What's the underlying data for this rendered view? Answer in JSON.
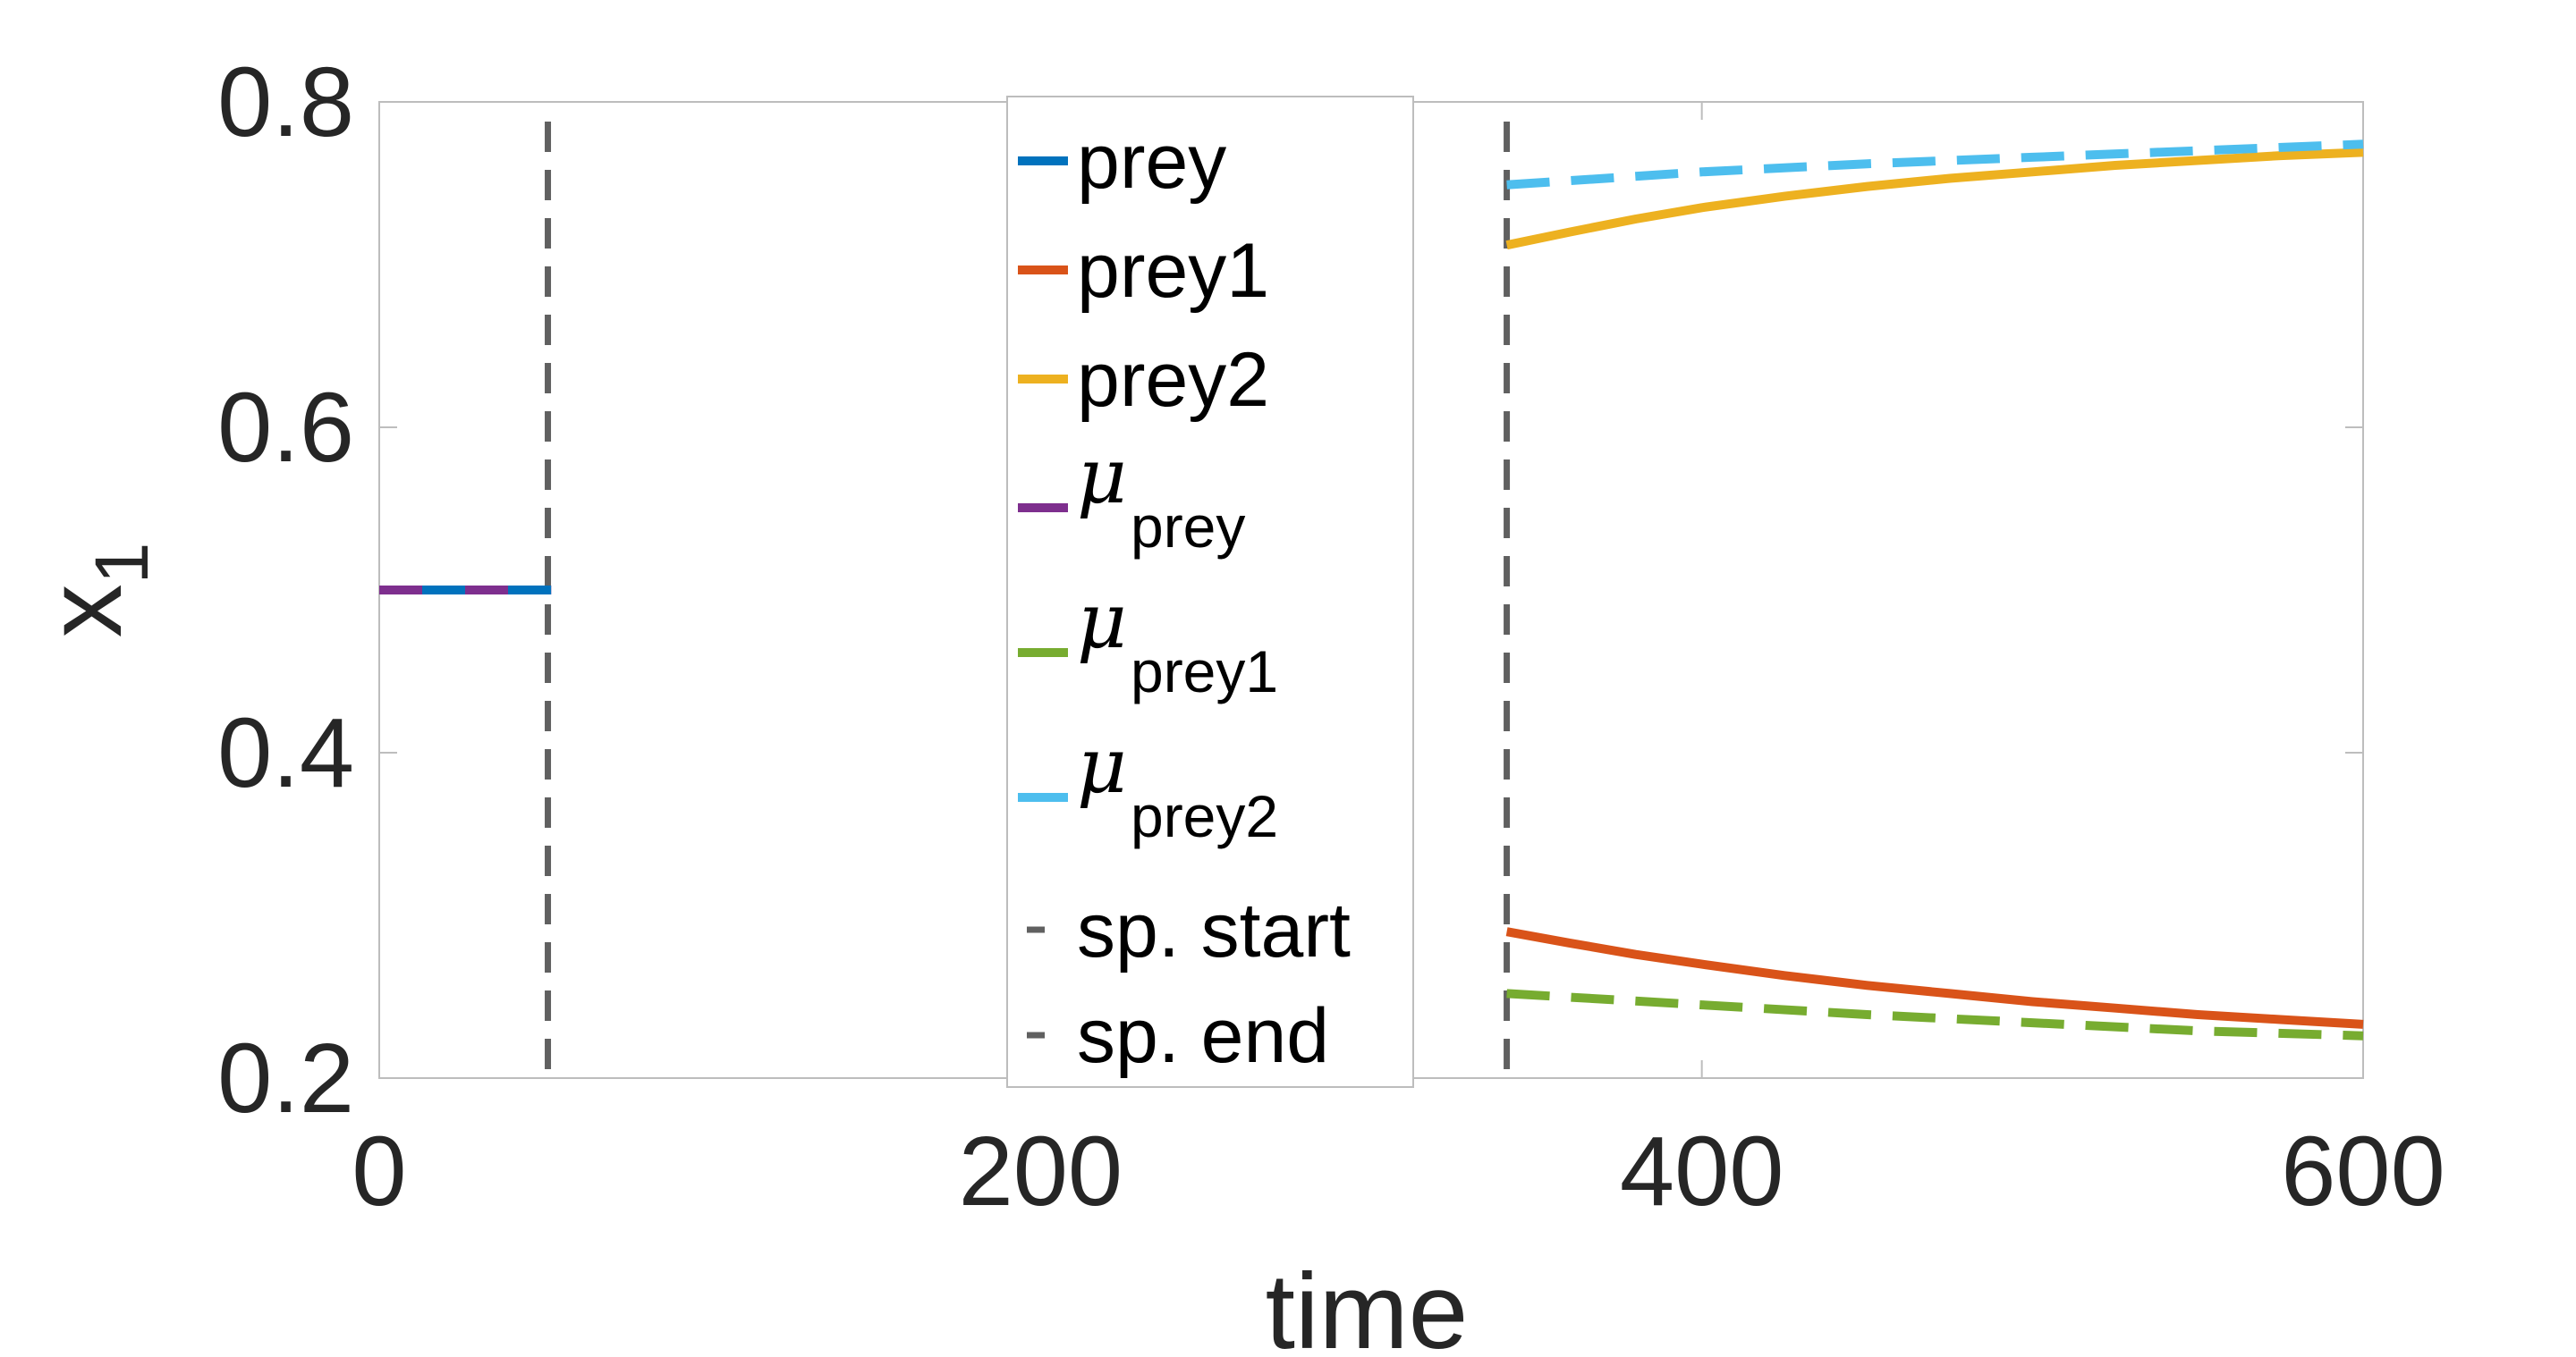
{
  "chart_data": {
    "type": "line",
    "xlabel": "time",
    "ylabel": "x",
    "ylabel_subscript": "1",
    "xlim": [
      0,
      600
    ],
    "ylim": [
      0.2,
      0.8
    ],
    "xticks": [
      0,
      200,
      400,
      600
    ],
    "xtick_labels": [
      "0",
      "200",
      "400",
      "600"
    ],
    "yticks": [
      0.2,
      0.4,
      0.6,
      0.8
    ],
    "ytick_labels": [
      "0.2",
      "0.4",
      "0.6",
      "0.8"
    ],
    "grid": false,
    "legend_position": "top-center",
    "series": [
      {
        "name": "prey",
        "color": "#0072BD",
        "style": "solid",
        "x": [
          0,
          52
        ],
        "y": [
          0.5,
          0.5
        ]
      },
      {
        "name": "prey1",
        "color": "#D95319",
        "style": "solid",
        "x": [
          341,
          360,
          380,
          400,
          425,
          450,
          475,
          500,
          525,
          550,
          575,
          600
        ],
        "y": [
          0.29,
          0.283,
          0.276,
          0.27,
          0.263,
          0.257,
          0.252,
          0.247,
          0.243,
          0.239,
          0.236,
          0.233
        ]
      },
      {
        "name": "prey2",
        "color": "#EDB120",
        "style": "solid",
        "x": [
          341,
          360,
          380,
          400,
          425,
          450,
          475,
          500,
          525,
          550,
          575,
          600
        ],
        "y": [
          0.712,
          0.72,
          0.728,
          0.735,
          0.742,
          0.748,
          0.753,
          0.757,
          0.761,
          0.764,
          0.767,
          0.769
        ]
      },
      {
        "name": "prey",
        "name_prefix": "μ",
        "name_is_subscript": true,
        "color": "#7E2F8E",
        "style": "dashed",
        "x": [
          0,
          52
        ],
        "y": [
          0.5,
          0.5
        ]
      },
      {
        "name": "prey1",
        "name_prefix": "μ",
        "name_is_subscript": true,
        "color": "#77AC30",
        "style": "dashed",
        "x": [
          341,
          400,
          450,
          500,
          550,
          600
        ],
        "y": [
          0.252,
          0.245,
          0.239,
          0.234,
          0.229,
          0.226
        ]
      },
      {
        "name": "prey2",
        "name_prefix": "μ",
        "name_is_subscript": true,
        "color": "#4DBEEE",
        "style": "dashed",
        "x": [
          341,
          400,
          450,
          500,
          550,
          600
        ],
        "y": [
          0.749,
          0.757,
          0.762,
          0.766,
          0.77,
          0.774
        ]
      }
    ],
    "vlines": [
      {
        "name": "sp. start",
        "x": 51,
        "color": "#606060",
        "style": "dashed"
      },
      {
        "name": "sp. end",
        "x": 341,
        "color": "#606060",
        "style": "dashed"
      }
    ]
  }
}
